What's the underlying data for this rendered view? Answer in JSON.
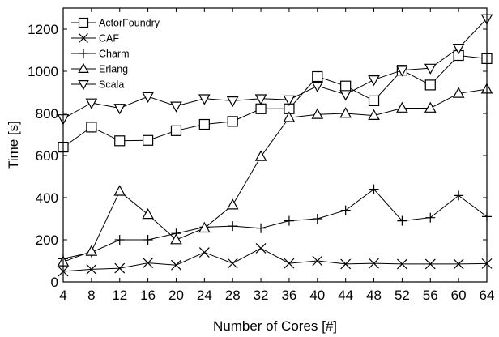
{
  "chart_data": {
    "type": "line",
    "xlabel": "Number of Cores [#]",
    "ylabel": "Time [s]",
    "xlim": [
      4,
      64
    ],
    "ylim": [
      0,
      1300
    ],
    "x": [
      4,
      8,
      12,
      16,
      20,
      24,
      28,
      32,
      36,
      40,
      44,
      48,
      52,
      56,
      60,
      64
    ],
    "xticks": [
      4,
      8,
      12,
      16,
      20,
      24,
      28,
      32,
      36,
      40,
      44,
      48,
      52,
      56,
      60,
      64
    ],
    "yticks": [
      0,
      200,
      400,
      600,
      800,
      1000,
      1200
    ],
    "grid": false,
    "legend_position": "top-left",
    "series": [
      {
        "name": "ActorFoundry",
        "marker": "square",
        "values": [
          640,
          735,
          670,
          672,
          718,
          748,
          762,
          822,
          822,
          975,
          930,
          860,
          1005,
          935,
          1075,
          1060
        ]
      },
      {
        "name": "CAF",
        "marker": "x",
        "values": [
          50,
          60,
          65,
          90,
          80,
          140,
          88,
          160,
          88,
          100,
          85,
          88,
          85,
          85,
          85,
          87
        ]
      },
      {
        "name": "Charm",
        "marker": "plus",
        "values": [
          110,
          140,
          200,
          200,
          230,
          260,
          265,
          255,
          290,
          300,
          340,
          440,
          290,
          305,
          410,
          310
        ]
      },
      {
        "name": "Erlang",
        "marker": "triangle-up",
        "values": [
          95,
          145,
          430,
          320,
          200,
          255,
          365,
          595,
          780,
          795,
          800,
          790,
          825,
          825,
          895,
          915
        ]
      },
      {
        "name": "Scala",
        "marker": "triangle-down",
        "values": [
          775,
          850,
          825,
          880,
          835,
          870,
          860,
          870,
          865,
          930,
          890,
          960,
          1005,
          1015,
          1110,
          1250
        ]
      }
    ],
    "line_color": "#000000"
  }
}
